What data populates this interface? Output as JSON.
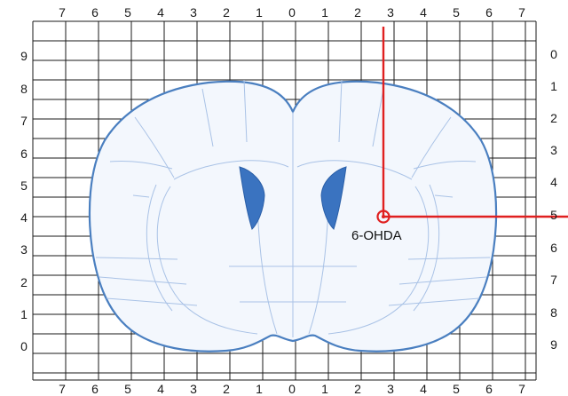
{
  "figure": {
    "top_axis": [
      "7",
      "6",
      "5",
      "4",
      "3",
      "2",
      "1",
      "0",
      "1",
      "2",
      "3",
      "4",
      "5",
      "6",
      "7"
    ],
    "bottom_axis": [
      "7",
      "6",
      "5",
      "4",
      "3",
      "2",
      "1",
      "0",
      "1",
      "2",
      "3",
      "4",
      "5",
      "6",
      "7"
    ],
    "left_axis": [
      "9",
      "8",
      "7",
      "6",
      "5",
      "4",
      "3",
      "2",
      "1",
      "0"
    ],
    "right_axis": [
      "0",
      "1",
      "2",
      "3",
      "4",
      "5",
      "6",
      "7",
      "8",
      "9"
    ],
    "injection": {
      "label": "6-OHDA",
      "mediolateral": 2.8,
      "dorsoventral": 5.0
    },
    "colors": {
      "grid": "#1a1a1a",
      "brain_outline": "#4a7fc0",
      "brain_fill": "#f3f7fd",
      "region_lines": "#a9c2e6",
      "ventricle": "#3a73c0",
      "target_lines": "#e02020"
    }
  }
}
